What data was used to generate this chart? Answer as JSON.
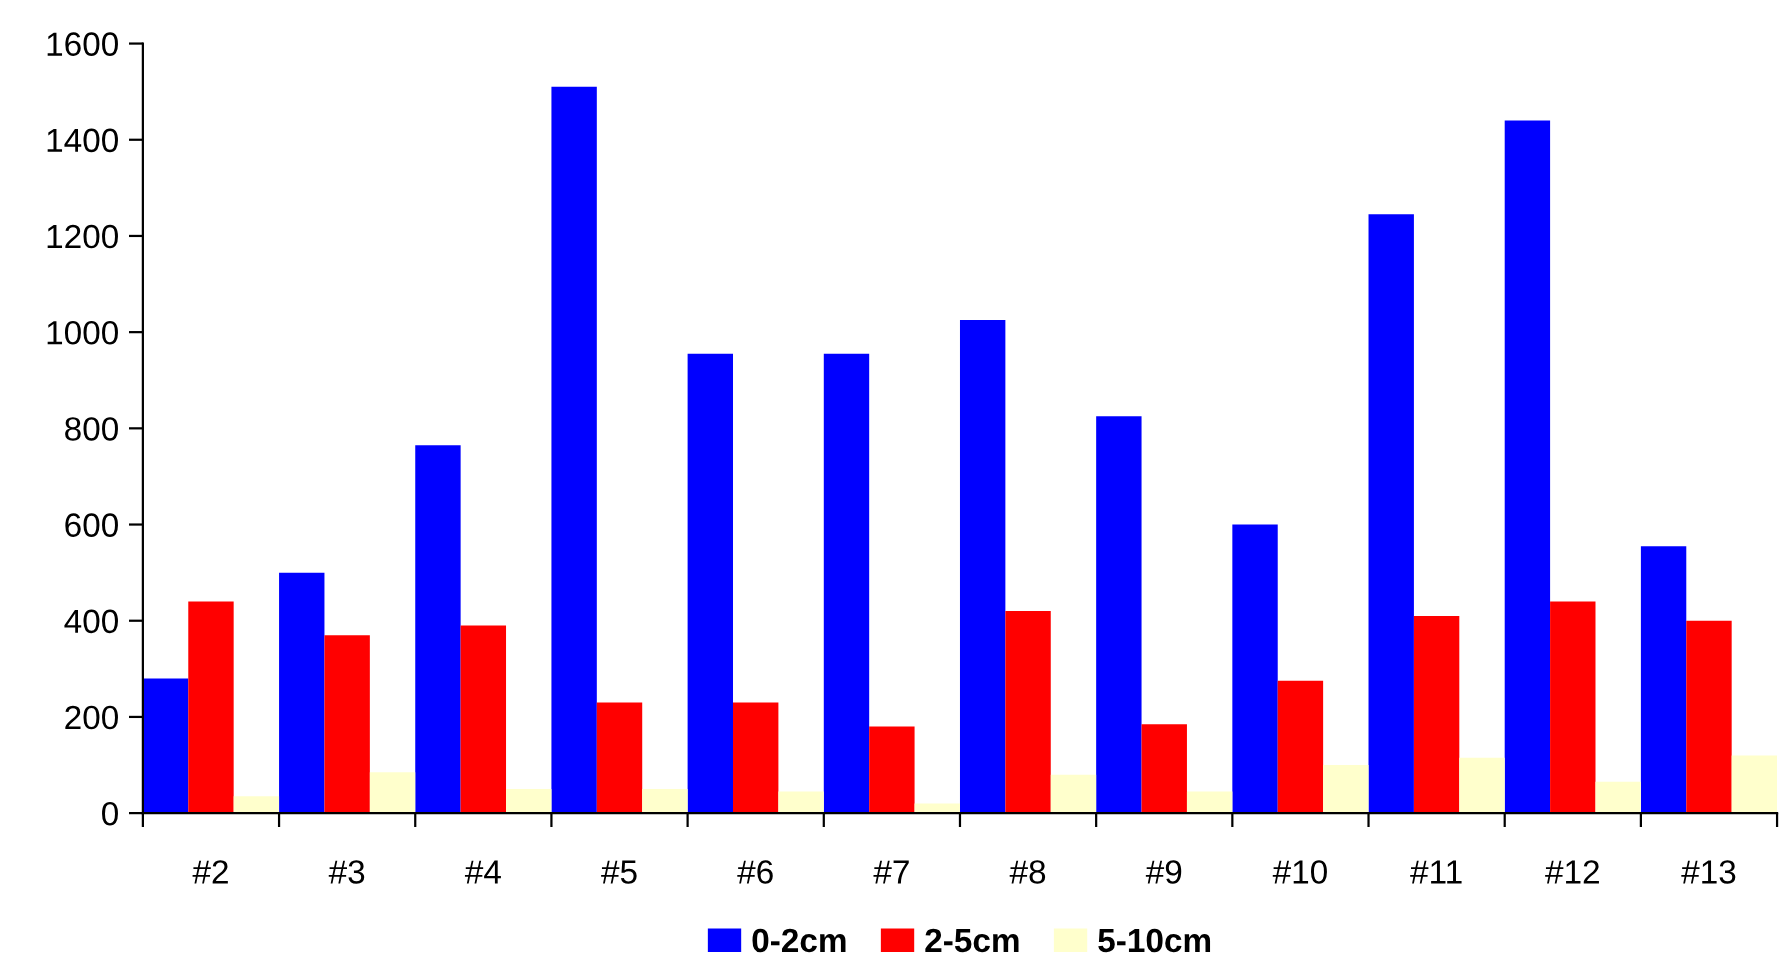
{
  "chart_data": {
    "type": "bar",
    "categories": [
      "#2",
      "#3",
      "#4",
      "#5",
      "#6",
      "#7",
      "#8",
      "#9",
      "#10",
      "#11",
      "#12",
      "#13"
    ],
    "series": [
      {
        "name": "0-2cm",
        "color": "#0000ff",
        "values": [
          280,
          500,
          765,
          1510,
          955,
          955,
          1025,
          825,
          600,
          1245,
          1440,
          555
        ]
      },
      {
        "name": "2-5cm",
        "color": "#ff0000",
        "values": [
          440,
          370,
          390,
          230,
          230,
          180,
          420,
          185,
          275,
          410,
          440,
          400
        ]
      },
      {
        "name": "5-10cm",
        "color": "#ffffcc",
        "values": [
          35,
          85,
          50,
          50,
          45,
          20,
          80,
          45,
          100,
          115,
          65,
          120
        ]
      }
    ],
    "ylim": [
      0,
      1600
    ],
    "yticks": [
      0,
      200,
      400,
      600,
      800,
      1000,
      1200,
      1400,
      1600
    ],
    "grid": false,
    "legend": "bottom"
  }
}
